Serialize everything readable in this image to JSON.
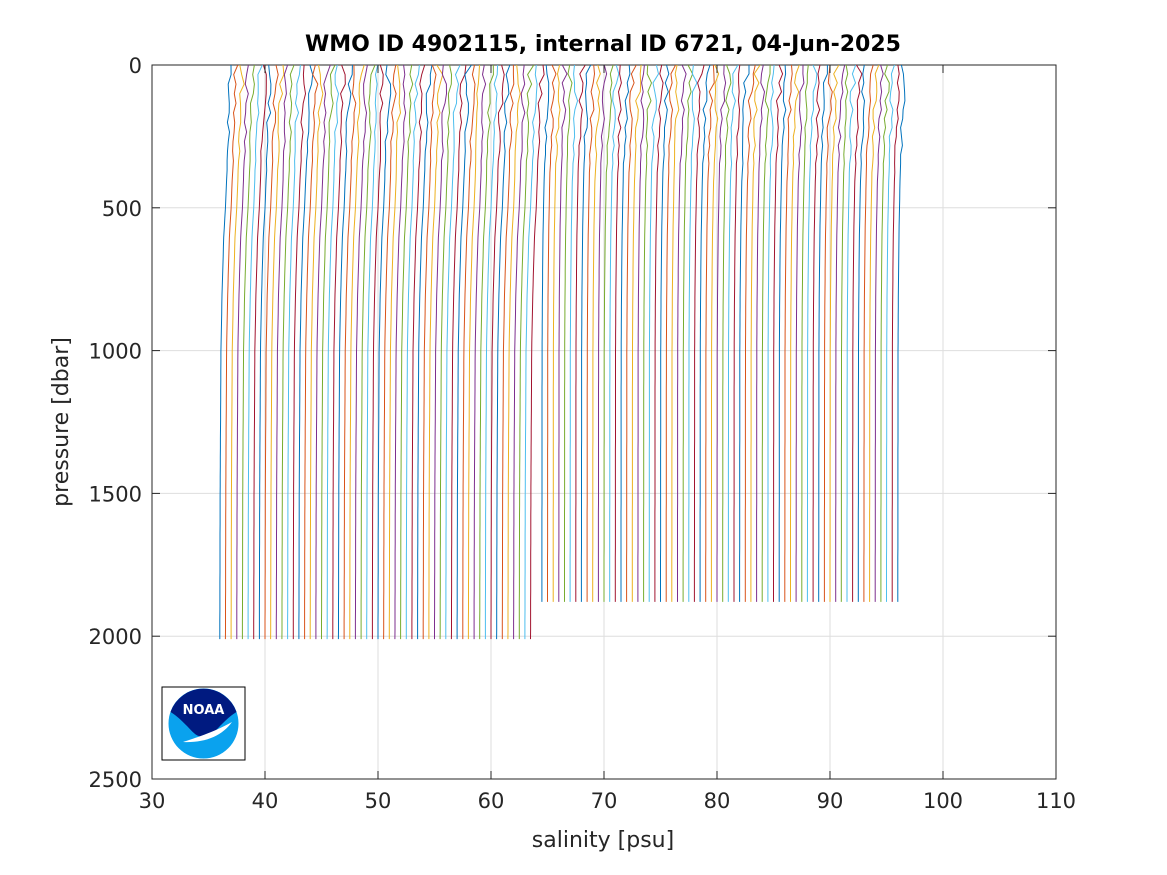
{
  "chart_data": {
    "type": "line",
    "title": "WMO ID 4902115, internal ID 6721, 04-Jun-2025",
    "xlabel": "salinity [psu]",
    "ylabel": "pressure [dbar]",
    "xlim": [
      30,
      110
    ],
    "ylim": [
      0,
      2500
    ],
    "y_reversed": true,
    "x_ticks": [
      30,
      40,
      50,
      60,
      70,
      80,
      90,
      100,
      110
    ],
    "y_ticks": [
      0,
      500,
      1000,
      1500,
      2000,
      2500
    ],
    "x_tick_labels": [
      "30",
      "40",
      "50",
      "60",
      "70",
      "80",
      "90",
      "100",
      "110"
    ],
    "y_tick_labels": [
      "0",
      "500",
      "1000",
      "1500",
      "2000",
      "2500"
    ],
    "grid": true,
    "legend": "none",
    "colors": [
      "#0072BD",
      "#D95319",
      "#EDB120",
      "#7E2F8E",
      "#77AC30",
      "#4DBEEE",
      "#A2142F"
    ],
    "profile_offset_step_psu": 0.5,
    "profile_groups": [
      {
        "profiles": 56,
        "first_deep_salinity": 36.0,
        "max_pressure": 2010,
        "pressure": [
          0,
          50,
          100,
          200,
          300,
          400,
          500,
          600,
          800,
          1000,
          1500,
          2000
        ],
        "salinity_anomaly": [
          1.0,
          0.95,
          0.9,
          0.8,
          0.7,
          0.6,
          0.5,
          0.35,
          0.2,
          0.1,
          0.03,
          0.0
        ]
      },
      {
        "profiles": 64,
        "first_deep_salinity": 64.5,
        "max_pressure": 1880,
        "pressure": [
          0,
          50,
          100,
          200,
          300,
          400,
          500,
          600,
          800,
          1000,
          1500,
          1900
        ],
        "salinity_anomaly": [
          0.6,
          0.55,
          0.5,
          0.4,
          0.3,
          0.2,
          0.15,
          0.1,
          0.05,
          0.02,
          0.01,
          0.0
        ]
      }
    ]
  },
  "logo": {
    "text": "NOAA",
    "colors": {
      "dark": "#001a80",
      "light": "#0aa2ee"
    }
  }
}
